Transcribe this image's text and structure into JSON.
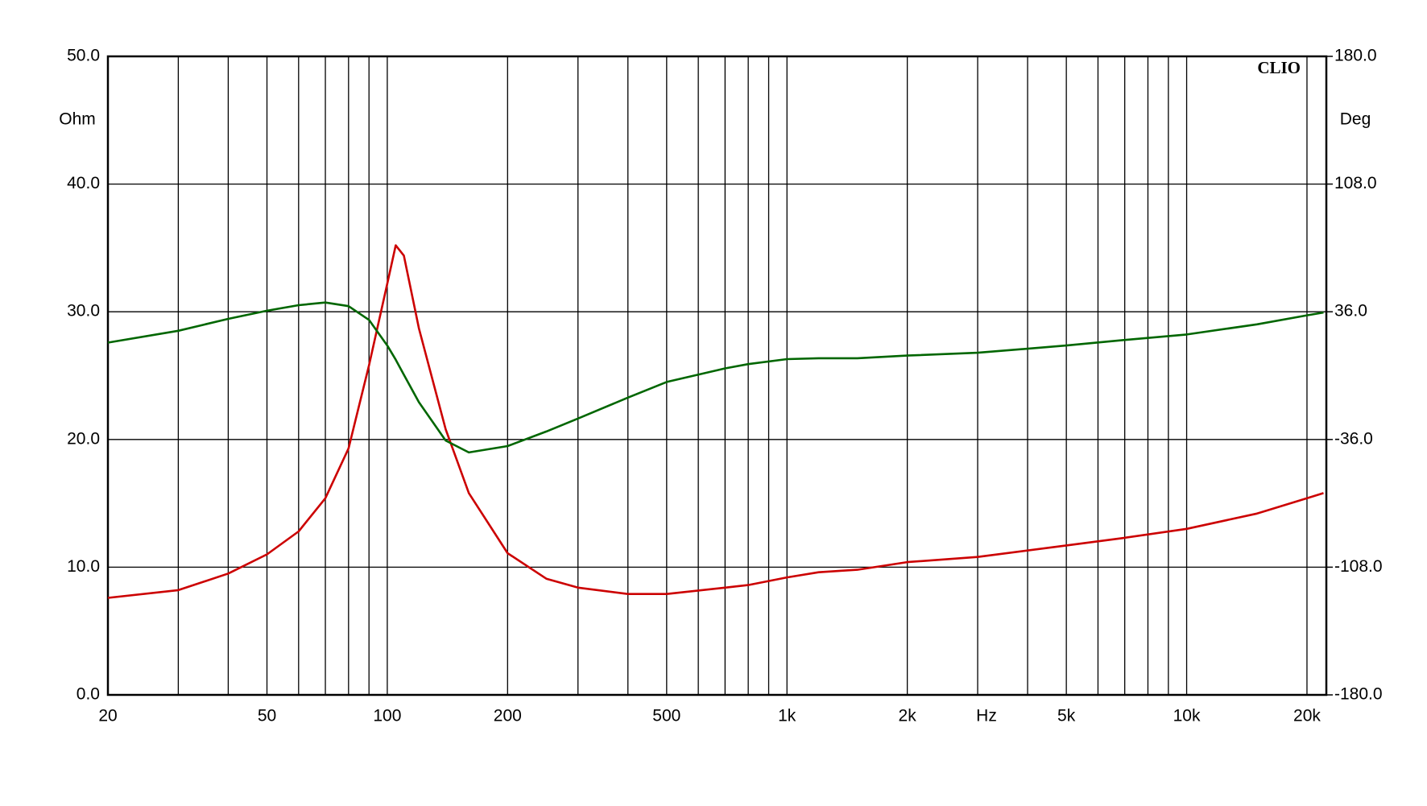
{
  "chart_data": {
    "type": "line",
    "x": [
      20,
      30,
      40,
      50,
      60,
      70,
      80,
      90,
      100,
      105,
      110,
      120,
      140,
      160,
      200,
      250,
      300,
      400,
      500,
      700,
      800,
      1000,
      1200,
      1500,
      2000,
      3000,
      5000,
      7000,
      10000,
      15000,
      20000,
      22000
    ],
    "series": [
      {
        "color": "#cc0000",
        "values": [
          7.6,
          8.2,
          9.5,
          11.0,
          12.8,
          15.4,
          19.3,
          25.8,
          32.2,
          35.2,
          34.4,
          28.7,
          20.8,
          15.8,
          11.1,
          9.1,
          8.4,
          7.9,
          7.9,
          8.4,
          8.6,
          9.2,
          9.6,
          9.8,
          10.4,
          10.8,
          11.7,
          12.3,
          13.0,
          14.2,
          15.4,
          15.8
        ]
      },
      {
        "color": "#006600",
        "axis": "y2",
        "values": [
          18.6,
          25.3,
          32.0,
          36.6,
          39.7,
          41.2,
          39.2,
          31.4,
          17.0,
          9.0,
          0.5,
          -15.0,
          -36.6,
          -43.3,
          -39.7,
          -31.5,
          -24.2,
          -12.4,
          -3.6,
          4.1,
          6.5,
          9.3,
          9.8,
          9.8,
          11.3,
          12.9,
          17.0,
          20.1,
          23.2,
          28.9,
          34.0,
          35.6
        ]
      }
    ],
    "log_x": true,
    "xlim": [
      20,
      22360
    ],
    "xticks": [
      20,
      50,
      100,
      200,
      500,
      {
        "value": 1000,
        "label": "1k"
      },
      {
        "value": 2000,
        "label": "2k"
      },
      {
        "value": 5000,
        "label": "5k"
      },
      {
        "value": 10000,
        "label": "10k"
      },
      {
        "value": 20000,
        "label": "20k"
      }
    ],
    "x_grid_minor": [
      30,
      40,
      60,
      70,
      80,
      90,
      300,
      400,
      600,
      700,
      800,
      900,
      3000,
      4000,
      6000,
      7000,
      8000,
      9000
    ],
    "x_unit_label": "Hz",
    "ylim": [
      0,
      50
    ],
    "yticks": [
      {
        "value": 0,
        "label": "0.0"
      },
      {
        "value": 10,
        "label": "10.0"
      },
      {
        "value": 20,
        "label": "20.0"
      },
      {
        "value": 30,
        "label": "30.0"
      },
      {
        "value": 40,
        "label": "40.0"
      },
      {
        "value": 50,
        "label": "50.0"
      }
    ],
    "y_label": "Ohm",
    "y2lim": [
      -180,
      180
    ],
    "y2ticks": [
      {
        "value": -180,
        "label": "-180.0"
      },
      {
        "value": -108,
        "label": "-108.0"
      },
      {
        "value": -36,
        "label": "-36.0"
      },
      {
        "value": 36,
        "label": "36.0"
      },
      {
        "value": 108,
        "label": "108.0"
      },
      {
        "value": 180,
        "label": "180.0"
      }
    ],
    "y2_label": "Deg",
    "annotation": "CLIO",
    "grid": true
  }
}
